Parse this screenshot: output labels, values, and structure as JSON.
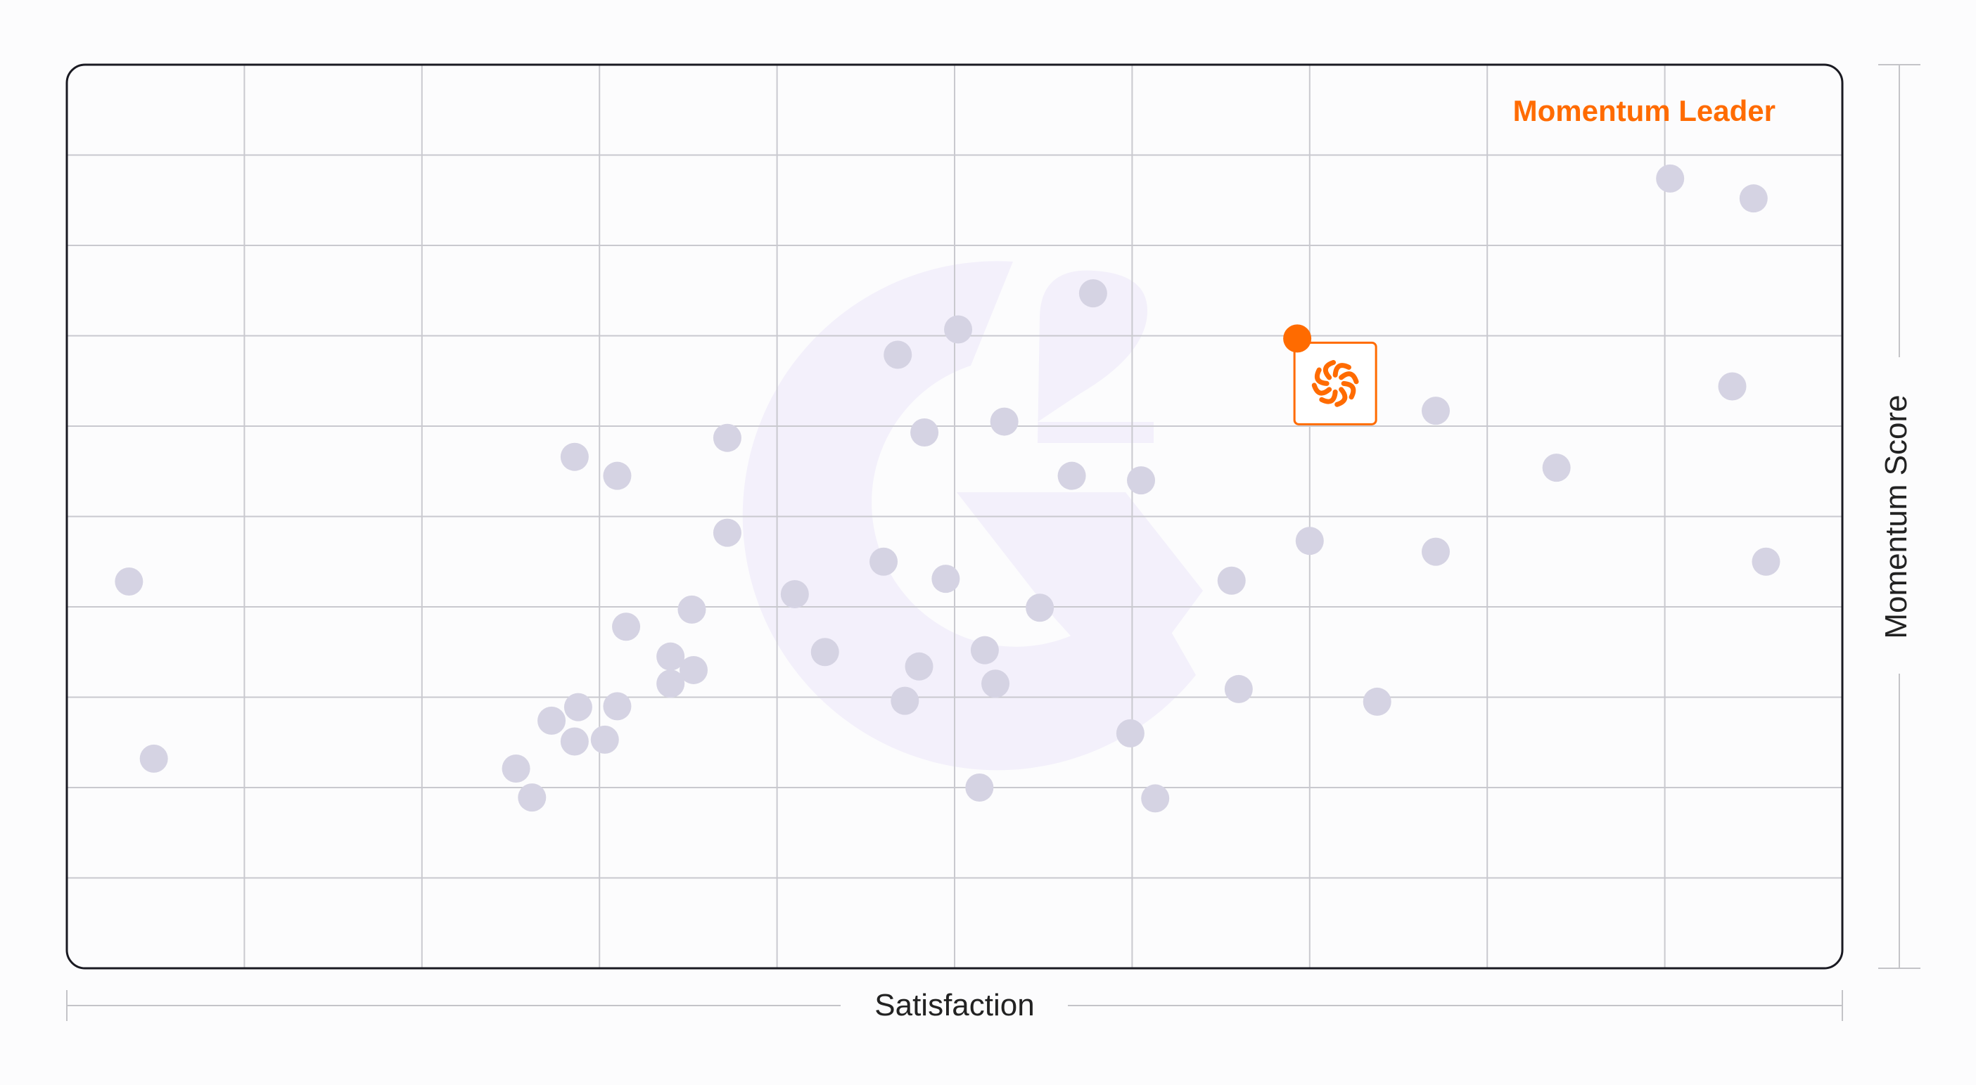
{
  "chart_data": {
    "type": "scatter",
    "title": "",
    "xlabel": "Satisfaction",
    "ylabel": "Momentum Score",
    "quadrant_label": "Momentum Leader",
    "xlim": [
      0,
      10
    ],
    "ylim": [
      0,
      10
    ],
    "grid": true,
    "legend": "none",
    "watermark": "G2 logo",
    "colors": {
      "point": "#d5d3e3",
      "highlight": "#ff6b00",
      "grid": "#c9c9cf",
      "frame": "#1a1a22",
      "axis_rule": "#c4c4c8",
      "watermark": "#f3f0fb"
    },
    "highlight": {
      "x": 6.93,
      "y": 6.97,
      "icon": "product-logo-icon"
    },
    "points": [
      {
        "x": 0.35,
        "y": 4.28
      },
      {
        "x": 0.49,
        "y": 2.32
      },
      {
        "x": 2.53,
        "y": 2.21
      },
      {
        "x": 2.62,
        "y": 1.89
      },
      {
        "x": 2.73,
        "y": 2.74
      },
      {
        "x": 2.86,
        "y": 5.66
      },
      {
        "x": 2.86,
        "y": 2.51
      },
      {
        "x": 2.88,
        "y": 2.89
      },
      {
        "x": 3.03,
        "y": 2.53
      },
      {
        "x": 3.1,
        "y": 2.9
      },
      {
        "x": 3.1,
        "y": 5.45
      },
      {
        "x": 3.15,
        "y": 3.78
      },
      {
        "x": 3.4,
        "y": 3.45
      },
      {
        "x": 3.4,
        "y": 3.15
      },
      {
        "x": 3.53,
        "y": 3.3
      },
      {
        "x": 3.52,
        "y": 3.97
      },
      {
        "x": 3.72,
        "y": 5.87
      },
      {
        "x": 3.72,
        "y": 4.82
      },
      {
        "x": 4.1,
        "y": 4.14
      },
      {
        "x": 4.27,
        "y": 3.5
      },
      {
        "x": 4.6,
        "y": 4.5
      },
      {
        "x": 4.68,
        "y": 6.79
      },
      {
        "x": 4.72,
        "y": 2.96
      },
      {
        "x": 4.8,
        "y": 3.34
      },
      {
        "x": 4.83,
        "y": 5.93
      },
      {
        "x": 4.95,
        "y": 4.31
      },
      {
        "x": 5.02,
        "y": 7.07
      },
      {
        "x": 5.14,
        "y": 2.0
      },
      {
        "x": 5.17,
        "y": 3.52
      },
      {
        "x": 5.23,
        "y": 3.15
      },
      {
        "x": 5.28,
        "y": 6.05
      },
      {
        "x": 5.48,
        "y": 3.99
      },
      {
        "x": 5.66,
        "y": 5.45
      },
      {
        "x": 5.78,
        "y": 7.47
      },
      {
        "x": 5.99,
        "y": 2.6
      },
      {
        "x": 6.05,
        "y": 5.4
      },
      {
        "x": 6.13,
        "y": 1.88
      },
      {
        "x": 6.56,
        "y": 4.29
      },
      {
        "x": 6.6,
        "y": 3.09
      },
      {
        "x": 7.0,
        "y": 4.73
      },
      {
        "x": 7.38,
        "y": 2.95
      },
      {
        "x": 7.71,
        "y": 6.17
      },
      {
        "x": 7.71,
        "y": 4.61
      },
      {
        "x": 8.39,
        "y": 5.54
      },
      {
        "x": 9.03,
        "y": 8.74
      },
      {
        "x": 9.38,
        "y": 6.44
      },
      {
        "x": 9.5,
        "y": 8.52
      },
      {
        "x": 9.57,
        "y": 4.5
      }
    ]
  }
}
